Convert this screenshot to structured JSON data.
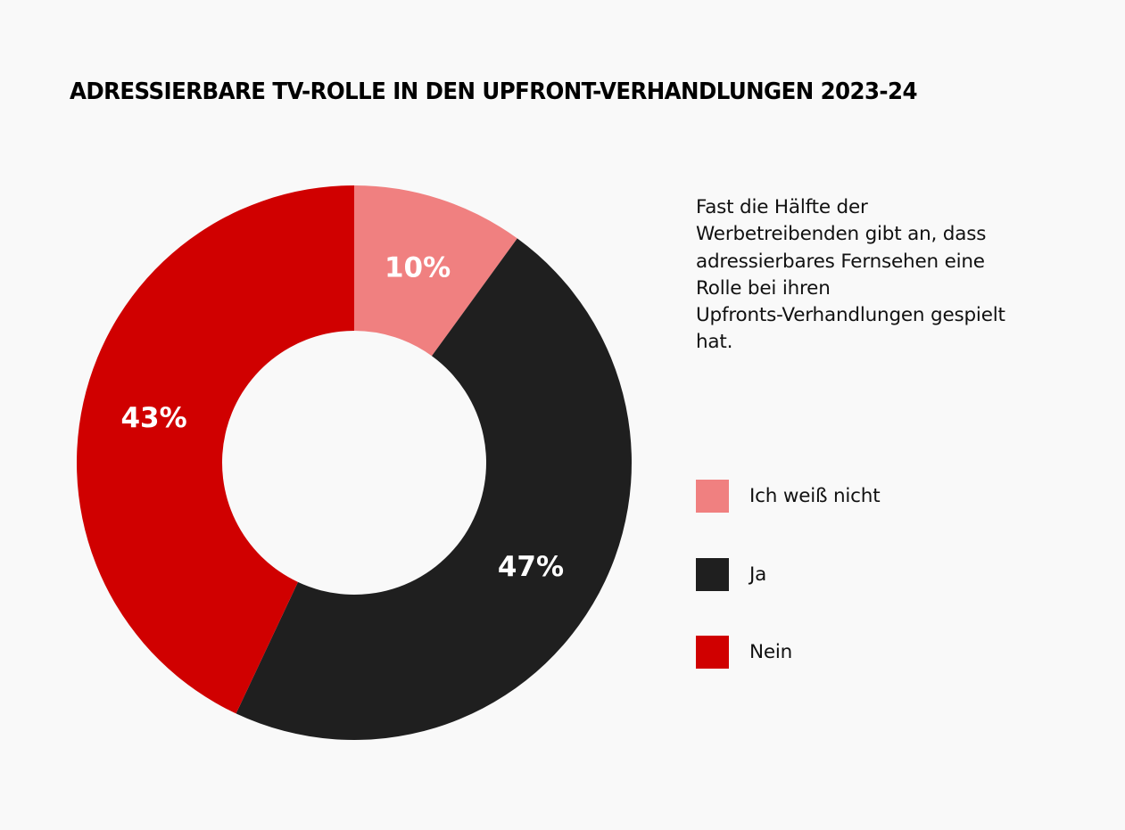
{
  "title": "ADRESSIERBARE TV-ROLLE IN DEN UPFRONT-VERHANDLUNGEN 2023-24",
  "description_lines": [
    "Fast die Hälfte der",
    "Werbetreibenden gibt an, dass",
    "adressierbares Fernsehen eine",
    "Rolle bei ihren",
    "Upfronts-Verhandlungen gespielt",
    "hat."
  ],
  "legend": [
    {
      "label": "Ich weiß nicht",
      "color": "#F08080"
    },
    {
      "label": "Ja",
      "color": "#1F1F1F"
    },
    {
      "label": "Nein",
      "color": "#D00000"
    }
  ],
  "chart_data": {
    "type": "pie",
    "variant": "donut",
    "title": "ADRESSIERBARE TV-ROLLE IN DEN UPFRONT-VERHANDLUNGEN 2023-24",
    "start_angle": "12 o'clock",
    "direction": "clockwise",
    "legend_position": "right",
    "slices": [
      {
        "label": "Ich weiß nicht",
        "value": 10,
        "display": "10%",
        "color": "#F08080"
      },
      {
        "label": "Ja",
        "value": 47,
        "display": "47%",
        "color": "#1F1F1F"
      },
      {
        "label": "Nein",
        "value": 43,
        "display": "43%",
        "color": "#D00000"
      }
    ],
    "unit": "%"
  }
}
